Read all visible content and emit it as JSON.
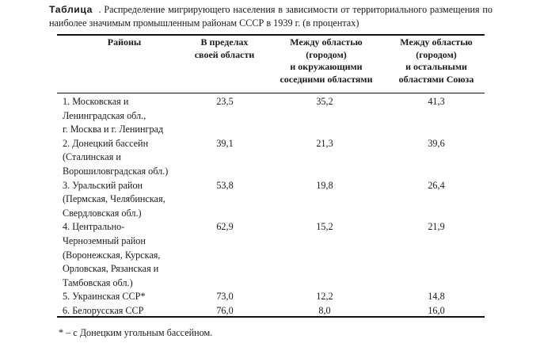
{
  "caption": {
    "label": "Таблица",
    "text": ". Распределение мигрирующего населения в зависимости от территориального размещения по наиболее значимым промышленным районам СССР в 1939 г. (в процентах)"
  },
  "table": {
    "headers": [
      [
        "Районы"
      ],
      [
        "В пределах",
        "своей области"
      ],
      [
        "Между областью",
        "(городом)",
        "и окружающими",
        "соседними областями"
      ],
      [
        "Между областью",
        "(городом)",
        "и остальными",
        "областями Союза"
      ]
    ],
    "rows": [
      {
        "name": [
          "1. Московская и",
          "Ленинградская обл.,",
          "г. Москва и г. Ленинград"
        ],
        "v1": "23,5",
        "v2": "35,2",
        "v3": "41,3"
      },
      {
        "name": [
          "2. Донецкий бассейн",
          "(Сталинская и",
          "Ворошиловградская обл.)"
        ],
        "v1": "39,1",
        "v2": "21,3",
        "v3": "39,6"
      },
      {
        "name": [
          "3. Уральский район",
          "(Пермская, Челябинская,",
          "Свердловская обл.)"
        ],
        "v1": "53,8",
        "v2": "19,8",
        "v3": "26,4"
      },
      {
        "name": [
          "4. Центрально-",
          "Черноземный район",
          "(Воронежская, Курская,",
          "Орловская, Рязанская и",
          "Тамбовская обл.)"
        ],
        "v1": "62,9",
        "v2": "15,2",
        "v3": "21,9"
      },
      {
        "name": [
          "5. Украинская ССР*"
        ],
        "v1": "73,0",
        "v2": "12,2",
        "v3": "14,8"
      },
      {
        "name": [
          "6. Белорусская ССР"
        ],
        "v1": "76,0",
        "v2": "8,0",
        "v3": "16,0"
      }
    ]
  },
  "footnote": "*  – с Донецким угольным бассейном."
}
